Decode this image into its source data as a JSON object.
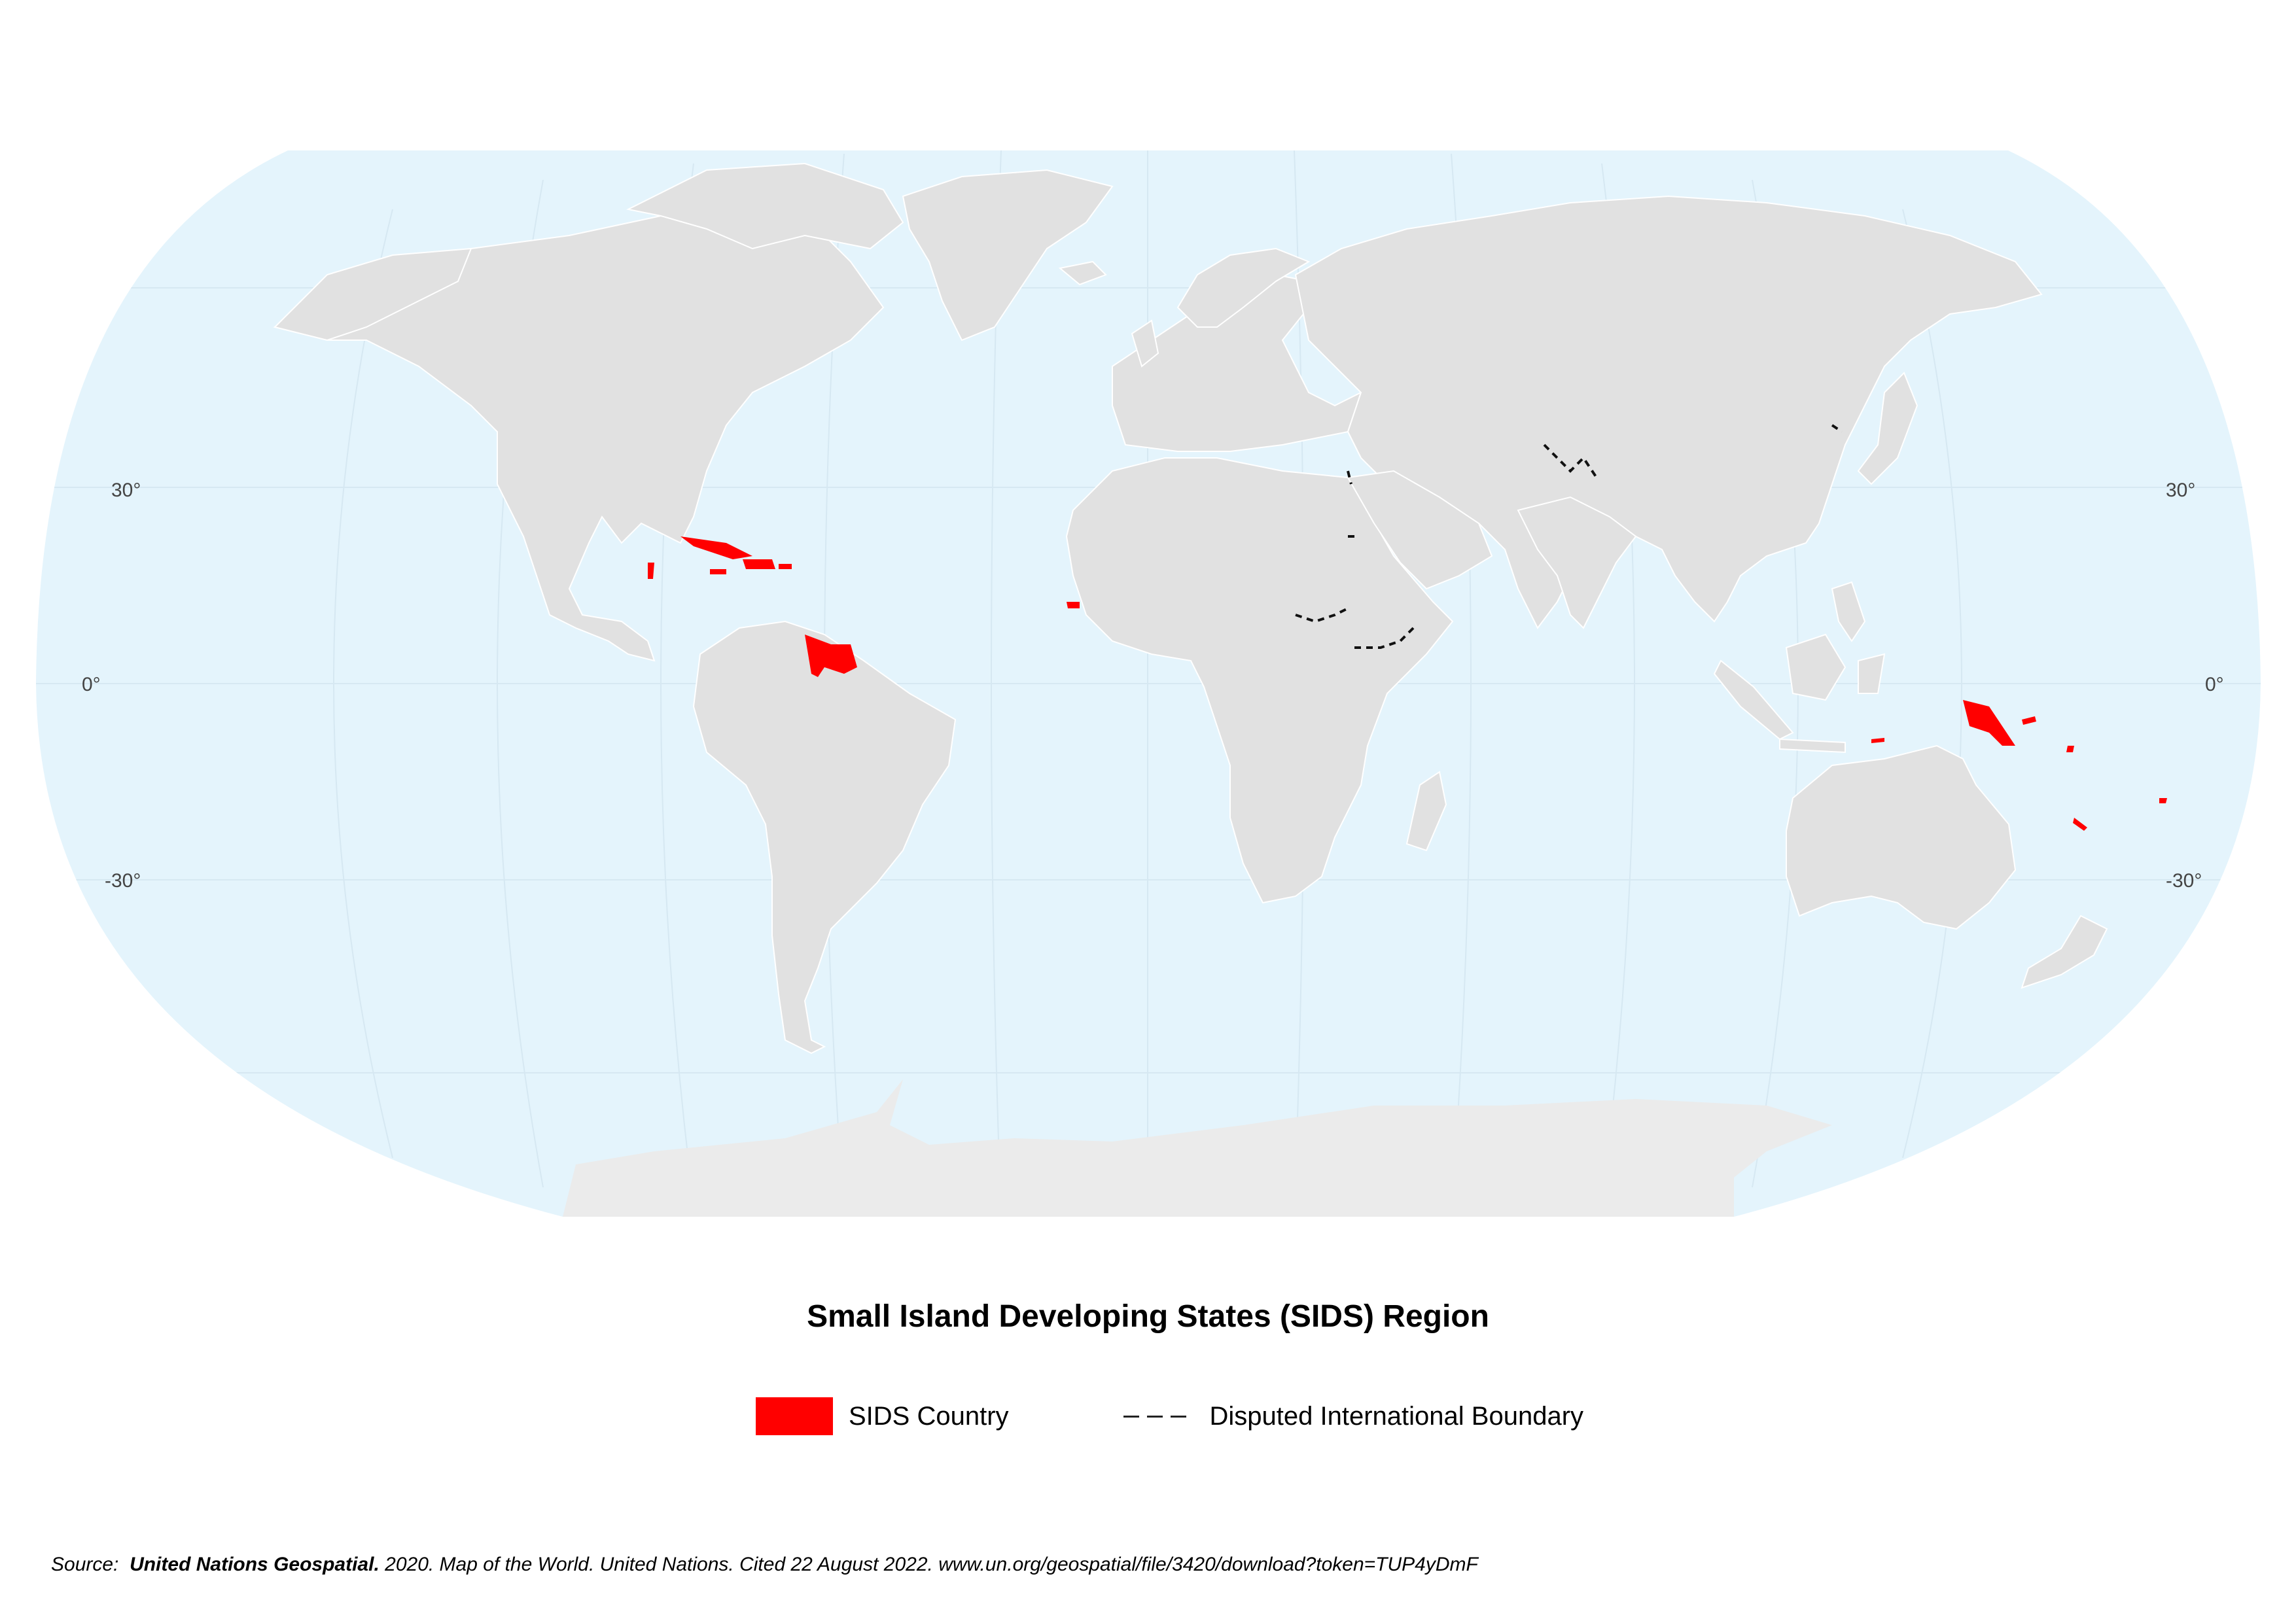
{
  "map": {
    "projection": "Robinson",
    "colors": {
      "ocean": "#e4f4fc",
      "land": "#e1e1e1",
      "antarctica": "#ebebeb",
      "sids": "#ff0000",
      "border": "#ffffff",
      "disputed": "#111111",
      "graticule": "#d6e8f2"
    },
    "latitude_labels": {
      "n30": "30°",
      "eq": "0°",
      "s30": "-30°"
    }
  },
  "title": "Small Island Developing States (SIDS) Region",
  "legend": {
    "sids_label": "SIDS Country",
    "disputed_label": "Disputed International Boundary"
  },
  "source": {
    "prefix": "Source:",
    "org": "United Nations Geospatial.",
    "rest": "2020.  Map of the World. United Nations. Cited 22 August 2022. www.un.org/geospatial/file/3420/download?token=TUP4yDmF"
  }
}
